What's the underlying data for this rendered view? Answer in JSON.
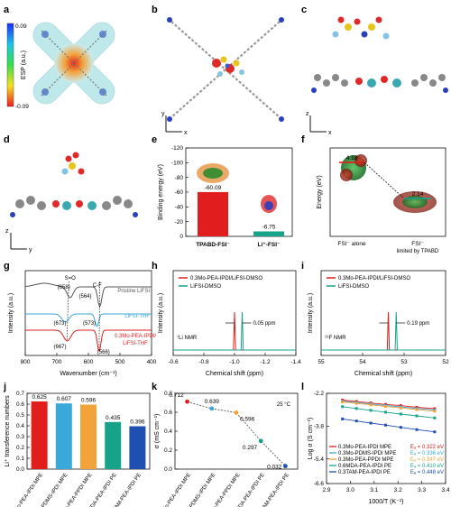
{
  "figure": {
    "panels": {
      "a": {
        "letter": "a",
        "colorbar": {
          "label": "ESP (a.u.)",
          "max": "0.09",
          "min": "-0.09"
        }
      },
      "b": {
        "letter": "b",
        "axis_x": "x",
        "axis_y": "y"
      },
      "c": {
        "letter": "c",
        "axis_x": "x",
        "axis_y": "z"
      },
      "d": {
        "letter": "d",
        "axis_x": "y",
        "axis_y": "z"
      }
    }
  },
  "chart_data": [
    {
      "id": "e",
      "letter": "e",
      "type": "bar",
      "ylabel": "Binding energy (eV)",
      "yticks": [
        "-120",
        "-100",
        "-80",
        "-60",
        "-40",
        "-20",
        "0"
      ],
      "ylim": [
        -120,
        0
      ],
      "categories": [
        "TPABD-FSI⁻",
        "Li⁺-FSI⁻"
      ],
      "values": [
        -60.09,
        -6.75
      ],
      "labels": [
        "-60.09",
        "-6.75"
      ],
      "colors": [
        "#e21d1d",
        "#17a389"
      ]
    },
    {
      "id": "f",
      "letter": "f",
      "type": "diagram",
      "ylabel": "Energy (eV)",
      "levels": [
        {
          "label": "FSI⁻ alone",
          "value": 4.18,
          "text": "4.18",
          "color": "#e21d1d"
        },
        {
          "label": "FSI⁻",
          "sublabel": "limited by TPABD",
          "value": 2.14,
          "text": "2.14",
          "color": "#17a389"
        }
      ]
    },
    {
      "id": "g",
      "letter": "g",
      "type": "line",
      "xlabel": "Wavenumber (cm⁻¹)",
      "ylabel": "Intensity (a.u.)",
      "xticks": [
        "800",
        "700",
        "600",
        "500",
        "400"
      ],
      "xlim": [
        800,
        400
      ],
      "series": [
        {
          "name": "Pristine LiFSI",
          "color": "#555555"
        },
        {
          "name": "LiFSI-THF",
          "color": "#3aa8d8"
        },
        {
          "name": "0.3Mo-PEA-IPDI/ LiFSI-THF",
          "color": "#e21d1d"
        }
      ],
      "annotations": [
        "S=O",
        "C-F",
        "(658)",
        "(564)",
        "(673)",
        "(573)",
        "(667)",
        "(566)"
      ]
    },
    {
      "id": "h",
      "letter": "h",
      "type": "line",
      "xlabel": "Chemical shift (ppm)",
      "ylabel": "Intensity (a.u.)",
      "xticks": [
        "-0.6",
        "-0.8",
        "-1.0",
        "-1.2",
        "-1.4"
      ],
      "xlim": [
        -0.6,
        -1.4
      ],
      "series": [
        {
          "name": "0.3Mo-PEA-IPDI/LiFSI-DMSO",
          "color": "#e21d1d",
          "peak": -1.0
        },
        {
          "name": "LiFSI-DMSO",
          "color": "#17a389",
          "peak": -1.05
        }
      ],
      "annotation": "0.05 ppm",
      "nucleus": "⁷Li NMR"
    },
    {
      "id": "i",
      "letter": "i",
      "type": "line",
      "xlabel": "Chemical shift (ppm)",
      "ylabel": "Intensity (a.u.)",
      "xticks": [
        "55",
        "54",
        "53",
        "52"
      ],
      "xlim": [
        55,
        52
      ],
      "series": [
        {
          "name": "0.3Mo-PEA-IPDI/LiFSI-DMSO",
          "color": "#e21d1d",
          "peak": 53.38
        },
        {
          "name": "LiFSI-DMSO",
          "color": "#17a389",
          "peak": 53.19
        }
      ],
      "annotation": "0.19 ppm",
      "nucleus": "¹⁹F NMR"
    },
    {
      "id": "j",
      "letter": "j",
      "type": "bar",
      "ylabel": "Li⁺ transference numbers",
      "yticks": [
        "0.0",
        "0.1",
        "0.2",
        "0.3",
        "0.4",
        "0.5",
        "0.6",
        "0.7"
      ],
      "ylim": [
        0,
        0.7
      ],
      "categories": [
        "0.3Mo-PEA-IPDI MPE",
        "0.3Mo-PDMS-IPDI MPE",
        "0.3Mo-PEA-PPDI MPE",
        "0.6MDA-PEA-IPDI PE",
        "0.3TAM-PEA-IPDI PE"
      ],
      "values": [
        0.625,
        0.607,
        0.596,
        0.435,
        0.396
      ],
      "labels": [
        "0.625",
        "0.607",
        "0.596",
        "0.435",
        "0.396"
      ],
      "colors": [
        "#e21d1d",
        "#3aa8d8",
        "#f2a33a",
        "#17a389",
        "#1f4fb0"
      ]
    },
    {
      "id": "k",
      "letter": "k",
      "type": "scatter",
      "ylabel": "σ (mS cm⁻¹)",
      "yticks": [
        "0.0",
        "0.2",
        "0.4",
        "0.6",
        "0.8"
      ],
      "ylim": [
        0,
        0.8
      ],
      "categories": [
        "0.3Mo-PEA-IPDI MPE",
        "0.3Mo-PDMS-IPDI MPE",
        "0.3Mo-PEA-PPDI MPE",
        "0.6MDA-PEA-IPDI PE",
        "0.3TAM-PEA-IPDI PE"
      ],
      "values": [
        0.712,
        0.639,
        0.596,
        0.297,
        0.032
      ],
      "labels": [
        "0.712",
        "0.639",
        "0.596",
        "0.297",
        "0.032"
      ],
      "colors": [
        "#e21d1d",
        "#3aa8d8",
        "#f2a33a",
        "#17a389",
        "#1f4fb0"
      ],
      "annotation": "25 °C"
    },
    {
      "id": "l",
      "letter": "l",
      "type": "line",
      "xlabel": "1000/T (K⁻¹)",
      "ylabel": "Log σ (S cm⁻¹)",
      "xticks": [
        "2.9",
        "3.0",
        "3.1",
        "3.2",
        "3.3",
        "3.4"
      ],
      "yticks": [
        "-2.2",
        "-3.8",
        "-5.4",
        "-6.6"
      ],
      "xlim": [
        2.9,
        3.4
      ],
      "ylim": [
        -6.6,
        -2.2
      ],
      "x": [
        2.967,
        3.026,
        3.086,
        3.148,
        3.212,
        3.279,
        3.354
      ],
      "series": [
        {
          "name": "0.3Mo-PEA-IPDI MPE",
          "ea": "Eₐ = 0.322 eV",
          "color": "#e21d1d",
          "values": [
            -2.53,
            -2.6,
            -2.67,
            -2.74,
            -2.8,
            -2.88,
            -2.95
          ]
        },
        {
          "name": "0.3Mo-PDMS-IPDI MPE",
          "ea": "Eₐ = 0.336 eV",
          "color": "#3aa8d8",
          "values": [
            -2.58,
            -2.65,
            -2.72,
            -2.79,
            -2.86,
            -2.94,
            -3.01
          ]
        },
        {
          "name": "0.3Mo-PEA-PPDI MPE",
          "ea": "Eₐ = 0.347 eV",
          "color": "#f2a33a",
          "values": [
            -2.62,
            -2.69,
            -2.76,
            -2.84,
            -2.91,
            -2.99,
            -3.07
          ]
        },
        {
          "name": "0.6MDA-PEA-IPDI PE",
          "ea": "Eₐ = 0.410 eV",
          "color": "#17a389",
          "values": [
            -2.85,
            -2.94,
            -3.03,
            -3.12,
            -3.21,
            -3.3,
            -3.4
          ]
        },
        {
          "name": "0.3TAM-PEA-IPDI PE",
          "ea": "Eₐ = 0.448 eV",
          "color": "#1f4fb0",
          "values": [
            -3.45,
            -3.55,
            -3.65,
            -3.75,
            -3.86,
            -3.97,
            -4.08
          ]
        }
      ]
    }
  ]
}
